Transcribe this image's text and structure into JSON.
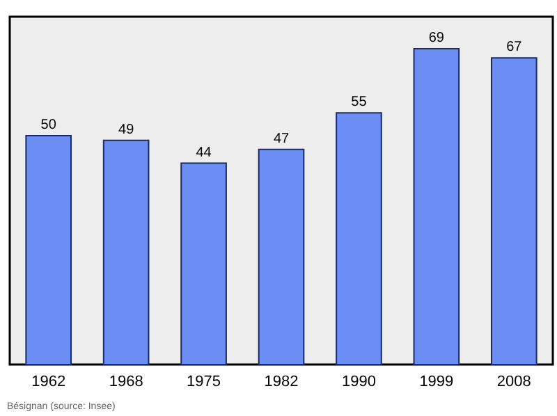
{
  "chart_data": {
    "type": "bar",
    "categories": [
      "1962",
      "1968",
      "1975",
      "1982",
      "1990",
      "1999",
      "2008"
    ],
    "values": [
      50,
      49,
      44,
      47,
      55,
      69,
      67
    ],
    "color": "#6b8ef5",
    "data_labels": true,
    "ylim": [
      0,
      76
    ],
    "annotations": [
      "Bésignan    (source: Insee)"
    ]
  }
}
